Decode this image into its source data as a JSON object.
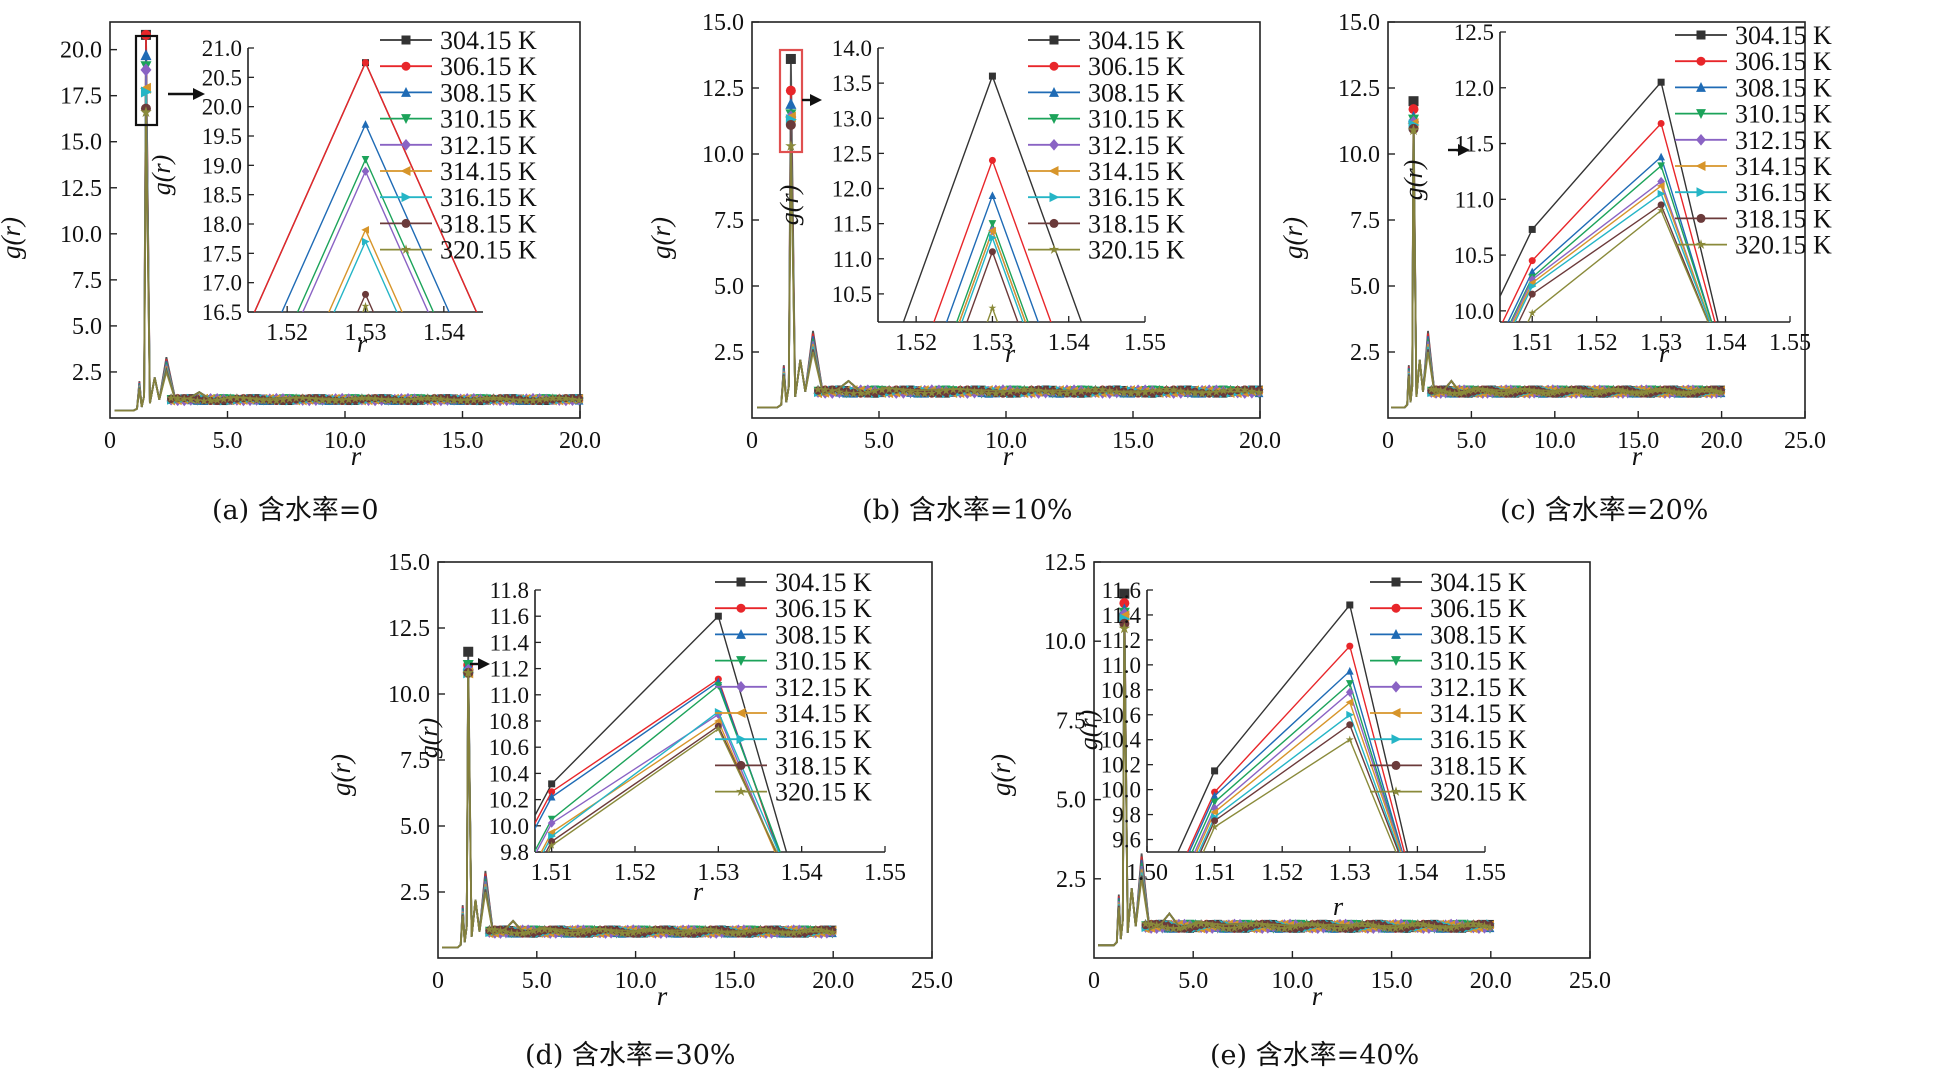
{
  "temperatures": [
    "304.15 K",
    "306.15 K",
    "308.15 K",
    "310.15 K",
    "312.15 K",
    "314.15 K",
    "316.15 K",
    "318.15 K",
    "320.15 K"
  ],
  "colors": [
    "#333333",
    "#e8262a",
    "#1f6bb5",
    "#1ca35a",
    "#8a63c4",
    "#d7952a",
    "#25b5c6",
    "#6b3a3a",
    "#8a8a3a"
  ],
  "markers": [
    "square",
    "circle",
    "triangle-up",
    "triangle-down",
    "diamond",
    "triangle-left",
    "triangle-right",
    "circle",
    "star"
  ],
  "chart_data": [
    {
      "type": "line",
      "caption": "(a) 含水率=0",
      "xlabel": "r",
      "ylabel": "g(r)",
      "xlim": [
        0,
        20
      ],
      "ylim": [
        0,
        21.5
      ],
      "xticks": [
        "0",
        "5.0",
        "10.0",
        "15.0",
        "20.0"
      ],
      "yticks": [
        "2.5",
        "5.0",
        "7.5",
        "10.0",
        "12.5",
        "15.0",
        "17.5",
        "20.0"
      ],
      "peak_values": [
        20.8,
        20.8,
        19.7,
        19.1,
        18.9,
        17.9,
        17.7,
        16.8,
        16.6
      ],
      "inset": {
        "xlim": [
          1.515,
          1.545
        ],
        "ylim": [
          16.5,
          21.0
        ],
        "xticks": [
          "1.52",
          "1.53",
          "1.54"
        ],
        "yticks": [
          "16.5",
          "17.0",
          "17.5",
          "18.0",
          "18.5",
          "19.0",
          "19.5",
          "20.0",
          "20.5",
          "21.0"
        ],
        "xlabel": "r",
        "ylabel": "g(r)",
        "series_y": [
          20.75,
          20.75,
          19.7,
          19.1,
          18.9,
          17.9,
          17.7,
          16.8,
          16.6
        ]
      }
    },
    {
      "type": "line",
      "caption": "(b) 含水率=10%",
      "xlabel": "r",
      "ylabel": "g(r)",
      "xlim": [
        0,
        20
      ],
      "ylim": [
        0,
        15
      ],
      "xticks": [
        "0",
        "5.0",
        "10.0",
        "15.0",
        "20.0"
      ],
      "yticks": [
        "2.5",
        "5.0",
        "7.5",
        "10.0",
        "12.5",
        "15.0"
      ],
      "peak_values": [
        13.6,
        12.4,
        11.9,
        11.5,
        11.4,
        11.4,
        11.3,
        11.1,
        10.3
      ],
      "inset": {
        "xlim": [
          1.515,
          1.55
        ],
        "ylim": [
          10.1,
          14.0
        ],
        "xticks": [
          "1.52",
          "1.53",
          "1.54",
          "1.55"
        ],
        "yticks": [
          "10.5",
          "11.0",
          "11.5",
          "12.0",
          "12.5",
          "13.0",
          "13.5",
          "14.0"
        ],
        "xlabel": "r",
        "ylabel": "g(r)",
        "series_y": [
          13.6,
          12.4,
          11.9,
          11.5,
          11.4,
          11.4,
          11.3,
          11.1,
          10.3
        ]
      }
    },
    {
      "type": "line",
      "caption": "(c) 含水率=20%",
      "xlabel": "r",
      "ylabel": "g(r)",
      "xlim": [
        0,
        25
      ],
      "ylim": [
        0,
        15
      ],
      "xticks": [
        "0",
        "5.0",
        "10.0",
        "15.0",
        "20.0",
        "25.0"
      ],
      "yticks": [
        "2.5",
        "5.0",
        "7.5",
        "10.0",
        "12.5",
        "15.0"
      ],
      "peak_values": [
        12.0,
        11.7,
        11.4,
        11.3,
        11.2,
        11.15,
        11.1,
        10.95,
        10.9
      ],
      "inset": {
        "xlim": [
          1.505,
          1.55
        ],
        "ylim": [
          9.9,
          12.5
        ],
        "xticks": [
          "1.51",
          "1.52",
          "1.53",
          "1.54",
          "1.55"
        ],
        "yticks": [
          "10.0",
          "10.5",
          "11.0",
          "11.5",
          "12.0",
          "12.5"
        ],
        "xlabel": "r",
        "ylabel": "g(r)",
        "series_left": [
          10.73,
          10.45,
          10.35,
          10.3,
          10.28,
          10.25,
          10.22,
          10.15,
          9.98
        ],
        "series_y": [
          12.05,
          11.68,
          11.38,
          11.3,
          11.16,
          11.12,
          11.05,
          10.95,
          10.9
        ]
      }
    },
    {
      "type": "line",
      "caption": "(d) 含水率=30%",
      "xlabel": "r",
      "ylabel": "g(r)",
      "xlim": [
        0,
        25
      ],
      "ylim": [
        0,
        15
      ],
      "xticks": [
        "0",
        "5.0",
        "10.0",
        "15.0",
        "20.0",
        "25.0"
      ],
      "yticks": [
        "2.5",
        "5.0",
        "7.5",
        "10.0",
        "12.5",
        "15.0"
      ],
      "peak_values": [
        11.6,
        11.1,
        11.1,
        11.1,
        10.9,
        10.8,
        10.8,
        10.8,
        10.8
      ],
      "inset": {
        "xlim": [
          1.508,
          1.55
        ],
        "ylim": [
          9.8,
          11.8
        ],
        "xticks": [
          "1.51",
          "1.52",
          "1.53",
          "1.54",
          "1.55"
        ],
        "yticks": [
          "9.8",
          "10.0",
          "10.2",
          "10.4",
          "10.6",
          "10.8",
          "11.0",
          "11.2",
          "11.4",
          "11.6",
          "11.8"
        ],
        "xlabel": "r",
        "ylabel": "g(r)",
        "series_left": [
          10.32,
          10.26,
          10.22,
          10.05,
          10.02,
          9.95,
          9.92,
          9.88,
          9.85
        ],
        "series_y": [
          11.6,
          11.12,
          11.1,
          11.07,
          10.85,
          10.8,
          10.87,
          10.76,
          10.74
        ]
      }
    },
    {
      "type": "line",
      "caption": "(e) 含水率=40%",
      "xlabel": "r",
      "ylabel": "g(r)",
      "xlim": [
        0,
        25
      ],
      "ylim": [
        0,
        12.5
      ],
      "xticks": [
        "0",
        "5.0",
        "10.0",
        "15.0",
        "20.0",
        "25.0"
      ],
      "yticks": [
        "2.5",
        "5.0",
        "7.5",
        "10.0",
        "12.5"
      ],
      "peak_values": [
        11.5,
        11.2,
        11.0,
        10.9,
        10.85,
        10.8,
        10.7,
        10.55,
        10.4
      ],
      "inset": {
        "xlim": [
          1.5,
          1.55
        ],
        "ylim": [
          9.5,
          11.6
        ],
        "xticks": [
          "1.50",
          "1.51",
          "1.52",
          "1.53",
          "1.54",
          "1.55"
        ],
        "yticks": [
          "9.6",
          "9.8",
          "10.0",
          "10.2",
          "10.4",
          "10.6",
          "10.8",
          "11.0",
          "11.2",
          "11.4",
          "11.6"
        ],
        "xlabel": "r",
        "ylabel": "g(r)",
        "series_left": [
          10.15,
          9.98,
          9.95,
          9.9,
          9.85,
          9.82,
          9.78,
          9.75,
          9.7
        ],
        "series_y": [
          11.48,
          11.15,
          10.95,
          10.85,
          10.78,
          10.7,
          10.6,
          10.52,
          10.4
        ]
      }
    }
  ]
}
